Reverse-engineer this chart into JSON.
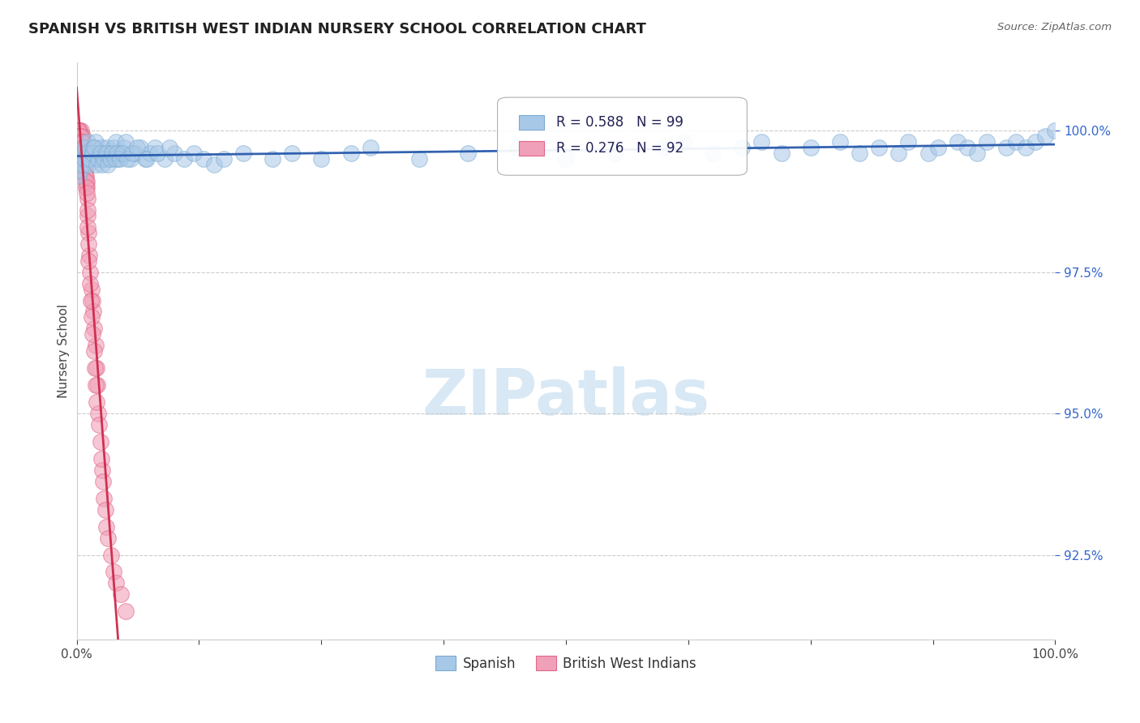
{
  "title": "SPANISH VS BRITISH WEST INDIAN NURSERY SCHOOL CORRELATION CHART",
  "source": "Source: ZipAtlas.com",
  "ylabel": "Nursery School",
  "ytick_values": [
    92.5,
    95.0,
    97.5,
    100.0
  ],
  "legend_spanish": "Spanish",
  "legend_bwi": "British West Indians",
  "r_spanish": "R = 0.588",
  "n_spanish": "N = 99",
  "r_bwi": "R = 0.276",
  "n_bwi": "N = 92",
  "blue_color": "#A8C8E8",
  "blue_edge_color": "#7AAAD0",
  "pink_color": "#F0A0B8",
  "pink_edge_color": "#E06888",
  "blue_line_color": "#2255AA",
  "blue_dash_color": "#88AACC",
  "pink_line_color": "#CC2244",
  "pink_dash_color": "#E899AA",
  "background_color": "#FFFFFF",
  "watermark_text": "ZIPatlas",
  "watermark_color": "#D8E8F5",
  "xlim": [
    0,
    100
  ],
  "ylim": [
    91.0,
    101.2
  ],
  "spanish_x": [
    0.2,
    0.3,
    0.5,
    0.7,
    0.9,
    1.1,
    1.3,
    1.5,
    1.7,
    1.9,
    2.1,
    2.3,
    2.5,
    2.7,
    2.9,
    3.1,
    3.3,
    3.5,
    3.8,
    4.0,
    4.2,
    4.5,
    4.8,
    5.0,
    5.5,
    6.0,
    6.5,
    7.0,
    7.5,
    8.0,
    9.0,
    10.0,
    11.0,
    12.0,
    13.0,
    14.0,
    15.0,
    17.0,
    20.0,
    22.0,
    25.0,
    28.0,
    30.0,
    35.0,
    40.0,
    45.0,
    50.0,
    55.0,
    60.0,
    62.0,
    65.0,
    68.0,
    70.0,
    72.0,
    75.0,
    78.0,
    80.0,
    82.0,
    84.0,
    85.0,
    87.0,
    88.0,
    90.0,
    91.0,
    92.0,
    93.0,
    95.0,
    96.0,
    97.0,
    98.0,
    99.0,
    100.0,
    0.4,
    0.6,
    0.8,
    1.0,
    1.2,
    1.4,
    1.6,
    1.8,
    2.0,
    2.2,
    2.4,
    2.6,
    2.8,
    3.0,
    3.2,
    3.4,
    3.6,
    3.9,
    4.1,
    4.4,
    4.7,
    5.2,
    5.7,
    6.2,
    7.2,
    8.2,
    9.5
  ],
  "spanish_y": [
    99.2,
    99.4,
    99.5,
    99.6,
    99.7,
    99.8,
    99.5,
    99.6,
    99.7,
    99.8,
    99.5,
    99.6,
    99.7,
    99.5,
    99.6,
    99.7,
    99.5,
    99.6,
    99.7,
    99.8,
    99.5,
    99.6,
    99.7,
    99.8,
    99.5,
    99.6,
    99.7,
    99.5,
    99.6,
    99.7,
    99.5,
    99.6,
    99.5,
    99.6,
    99.5,
    99.4,
    99.5,
    99.6,
    99.5,
    99.6,
    99.5,
    99.6,
    99.7,
    99.5,
    99.6,
    99.7,
    99.5,
    99.6,
    99.7,
    99.8,
    99.6,
    99.7,
    99.8,
    99.6,
    99.7,
    99.8,
    99.6,
    99.7,
    99.6,
    99.8,
    99.6,
    99.7,
    99.8,
    99.7,
    99.6,
    99.8,
    99.7,
    99.8,
    99.7,
    99.8,
    99.9,
    100.0,
    99.3,
    99.4,
    99.5,
    99.6,
    99.4,
    99.5,
    99.6,
    99.7,
    99.4,
    99.5,
    99.6,
    99.4,
    99.5,
    99.6,
    99.4,
    99.5,
    99.6,
    99.5,
    99.6,
    99.5,
    99.6,
    99.5,
    99.6,
    99.7,
    99.5,
    99.6,
    99.7
  ],
  "bwi_x": [
    0.08,
    0.12,
    0.15,
    0.18,
    0.22,
    0.25,
    0.28,
    0.32,
    0.35,
    0.38,
    0.42,
    0.45,
    0.48,
    0.52,
    0.55,
    0.58,
    0.62,
    0.65,
    0.68,
    0.72,
    0.75,
    0.78,
    0.85,
    0.9,
    0.95,
    1.0,
    1.05,
    1.1,
    1.15,
    1.2,
    1.3,
    1.4,
    1.5,
    1.6,
    1.7,
    1.8,
    1.9,
    2.0,
    2.1,
    2.2,
    2.4,
    2.6,
    2.8,
    3.0,
    3.2,
    3.5,
    3.8,
    4.0,
    4.5,
    5.0,
    0.1,
    0.14,
    0.17,
    0.2,
    0.24,
    0.27,
    0.3,
    0.34,
    0.37,
    0.4,
    0.44,
    0.47,
    0.5,
    0.54,
    0.57,
    0.6,
    0.64,
    0.67,
    0.7,
    0.74,
    0.77,
    0.8,
    0.88,
    0.92,
    0.98,
    1.02,
    1.08,
    1.12,
    1.18,
    1.22,
    1.35,
    1.45,
    1.55,
    1.65,
    1.75,
    1.85,
    1.95,
    2.05,
    2.25,
    2.5,
    2.7,
    2.9
  ],
  "bwi_y": [
    100.0,
    100.0,
    99.9,
    99.8,
    100.0,
    99.9,
    99.8,
    100.0,
    99.9,
    99.8,
    100.0,
    99.9,
    99.8,
    99.7,
    99.8,
    99.9,
    99.7,
    99.8,
    99.6,
    99.7,
    99.5,
    99.6,
    99.4,
    99.3,
    99.2,
    99.1,
    99.0,
    98.8,
    98.5,
    98.2,
    97.8,
    97.5,
    97.2,
    97.0,
    96.8,
    96.5,
    96.2,
    95.8,
    95.5,
    95.0,
    94.5,
    94.0,
    93.5,
    93.0,
    92.8,
    92.5,
    92.2,
    92.0,
    91.8,
    91.5,
    99.9,
    100.0,
    99.9,
    100.0,
    100.0,
    99.9,
    99.8,
    99.9,
    99.8,
    99.9,
    99.8,
    99.9,
    99.7,
    99.8,
    99.7,
    99.8,
    99.6,
    99.7,
    99.5,
    99.6,
    99.5,
    99.4,
    99.2,
    99.1,
    99.0,
    98.9,
    98.6,
    98.3,
    98.0,
    97.7,
    97.3,
    97.0,
    96.7,
    96.4,
    96.1,
    95.8,
    95.5,
    95.2,
    94.8,
    94.2,
    93.8,
    93.3
  ]
}
